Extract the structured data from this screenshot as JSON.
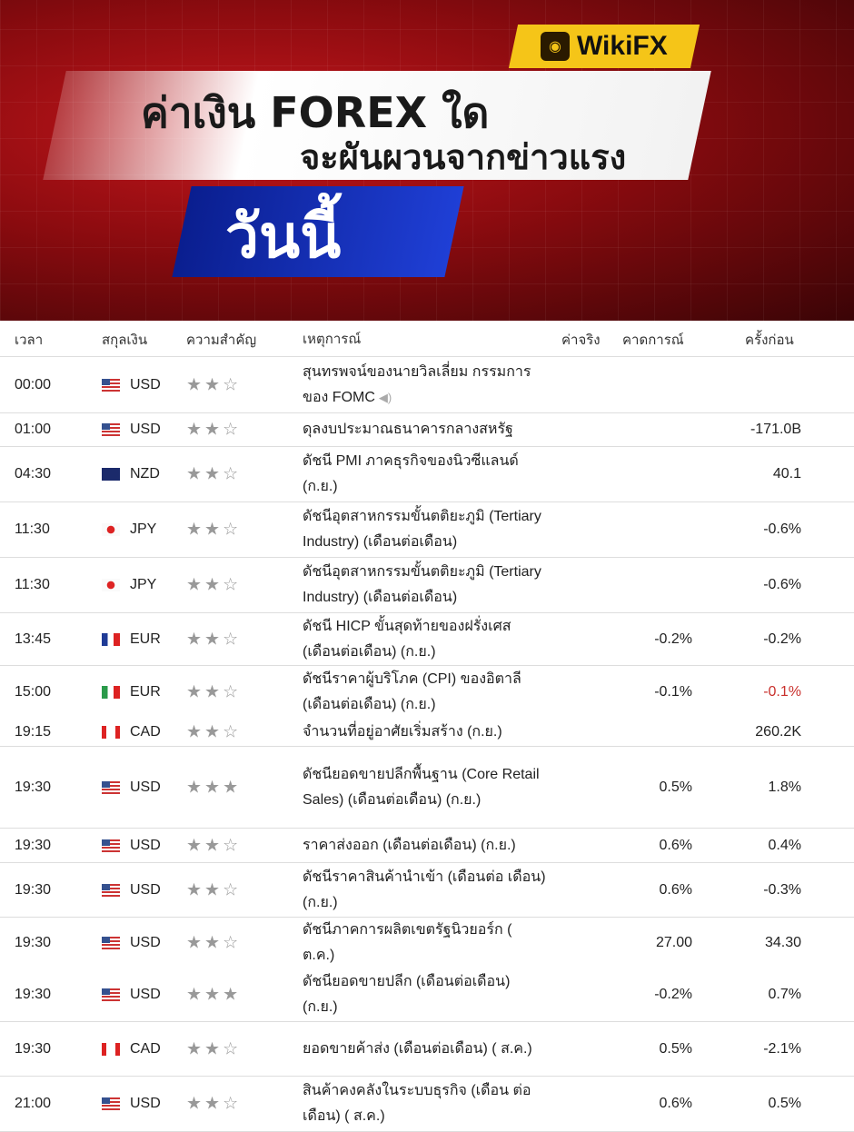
{
  "banner": {
    "brand": "WikiFX",
    "title_line1": "ค่าเงิน FOREX ใด",
    "title_line2": "จะผันผวนจากข่าวแรง",
    "title_line3": "วันนี้",
    "colors": {
      "background": "#b0141a",
      "badge": "#f5c518",
      "accent_blue": "#1f3fd6"
    }
  },
  "table": {
    "headers": {
      "time": "เวลา",
      "currency": "สกุลเงิน",
      "importance": "ความสำคัญ",
      "event": "เหตุการณ์",
      "actual": "ค่าจริง",
      "forecast": "คาดการณ์",
      "previous": "ครั้งก่อน"
    },
    "rows": [
      {
        "time": "00:00",
        "currency": "USD",
        "flag": "USD",
        "stars": 2,
        "event": "สุนทรพจน์ของนายวิลเลี่ยม กรรมการของ FOMC",
        "speaker_icon": true,
        "actual": "",
        "forecast": "",
        "previous": ""
      },
      {
        "time": "01:00",
        "currency": "USD",
        "flag": "USD",
        "stars": 2,
        "event": "ดุลงบประมาณธนาคารกลางสหรัฐ",
        "actual": "",
        "forecast": "",
        "previous": "-171.0B"
      },
      {
        "time": "04:30",
        "currency": "NZD",
        "flag": "NZD",
        "stars": 2,
        "event": "ดัชนี PMI ภาคธุรกิจของนิวซีแลนด์ (ก.ย.)",
        "actual": "",
        "forecast": "",
        "previous": "40.1"
      },
      {
        "time": "11:30",
        "currency": "JPY",
        "flag": "JPY",
        "stars": 2,
        "event": "ดัชนีอุตสาหกรรมขั้นตติยะภูมิ (Tertiary Industry) (เดือนต่อเดือน)",
        "actual": "",
        "forecast": "",
        "previous": "-0.6%"
      },
      {
        "time": "11:30",
        "currency": "JPY",
        "flag": "JPY",
        "stars": 2,
        "event": "ดัชนีอุตสาหกรรมขั้นตติยะภูมิ (Tertiary Industry) (เดือนต่อเดือน)",
        "actual": "",
        "forecast": "",
        "previous": "-0.6%"
      },
      {
        "time": "13:45",
        "currency": "EUR",
        "flag": "FR",
        "stars": 2,
        "event": "ดัชนี HICP ขั้นสุดท้ายของฝรั่งเศส (เดือนต่อเดือน) (ก.ย.)",
        "actual": "",
        "forecast": "-0.2%",
        "previous": "-0.2%"
      },
      {
        "time": "15:00",
        "currency": "EUR",
        "flag": "IT",
        "stars": 2,
        "event": "ดัชนีราคาผู้บริโภค (CPI) ของอิตาลี (เดือนต่อเดือน) (ก.ย.)",
        "actual": "",
        "forecast": "-0.1%",
        "previous": "-0.1%",
        "previous_color": "#c9302c"
      },
      {
        "time": "19:15",
        "currency": "CAD",
        "flag": "CAD",
        "stars": 2,
        "event": "จำนวนที่อยู่อาศัยเริ่มสร้าง (ก.ย.)",
        "actual": "",
        "forecast": "",
        "previous": "260.2K"
      },
      {
        "time": "19:30",
        "currency": "USD",
        "flag": "USD",
        "stars": 3,
        "event": "ดัชนียอดขายปลีกพื้นฐาน (Core Retail Sales) (เดือนต่อเดือน) (ก.ย.)",
        "actual": "",
        "forecast": "0.5%",
        "previous": "1.8%"
      },
      {
        "time": "19:30",
        "currency": "USD",
        "flag": "USD",
        "stars": 2,
        "event": "ราคาส่งออก (เดือนต่อเดือน) (ก.ย.)",
        "actual": "",
        "forecast": "0.6%",
        "previous": "0.4%"
      },
      {
        "time": "19:30",
        "currency": "USD",
        "flag": "USD",
        "stars": 2,
        "event": "ดัชนีราคาสินค้านำเข้า (เดือนต่อ เดือน) (ก.ย.)",
        "actual": "",
        "forecast": "0.6%",
        "previous": "-0.3%"
      },
      {
        "time": "19:30",
        "currency": "USD",
        "flag": "USD",
        "stars": 2,
        "event": "ดัชนีภาคการผลิตเขตรัฐนิวยอร์ก ( ต.ค.)",
        "actual": "",
        "forecast": "27.00",
        "previous": "34.30"
      },
      {
        "time": "19:30",
        "currency": "USD",
        "flag": "USD",
        "stars": 3,
        "event": "ดัชนียอดขายปลีก (เดือนต่อเดือน) (ก.ย.)",
        "actual": "",
        "forecast": "-0.2%",
        "previous": "0.7%"
      },
      {
        "time": "19:30",
        "currency": "CAD",
        "flag": "CAD",
        "stars": 2,
        "event": "ยอดขายค้าส่ง (เดือนต่อเดือน) ( ส.ค.)",
        "actual": "",
        "forecast": "0.5%",
        "previous": "-2.1%"
      },
      {
        "time": "21:00",
        "currency": "USD",
        "flag": "USD",
        "stars": 2,
        "event": "สินค้าคงคลังในระบบธุรกิจ (เดือน ต่อเดือน) ( ส.ค.)",
        "actual": "",
        "forecast": "0.6%",
        "previous": "0.5%"
      }
    ]
  }
}
